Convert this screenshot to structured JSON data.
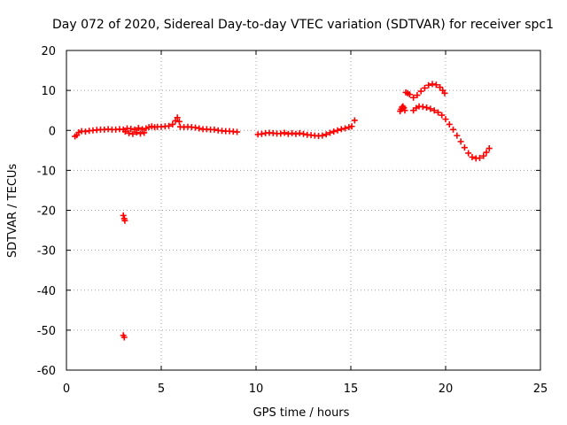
{
  "chart_data": {
    "type": "scatter",
    "title": "Day 072 of 2020, Sidereal Day-to-day VTEC variation (SDTVAR) for receiver spc1",
    "xlabel": "GPS time / hours",
    "ylabel": "SDTVAR / TECUs",
    "xlim": [
      0,
      25
    ],
    "ylim": [
      -60,
      20
    ],
    "xticks": [
      "0",
      "5",
      "10",
      "15",
      "20",
      "25"
    ],
    "yticks": [
      "20",
      "10",
      "0",
      "-10",
      "-20",
      "-30",
      "-40",
      "-50",
      "-60"
    ],
    "grid": true,
    "marker": "plus",
    "color": "#ff0000",
    "series": [
      {
        "name": "SDTVAR",
        "points": [
          [
            0.45,
            -1.5
          ],
          [
            0.55,
            -1.2
          ],
          [
            0.65,
            -0.5
          ],
          [
            0.8,
            -0.2
          ],
          [
            1.0,
            -0.3
          ],
          [
            1.2,
            -0.1
          ],
          [
            1.4,
            0.0
          ],
          [
            1.6,
            0.1
          ],
          [
            1.8,
            0.2
          ],
          [
            2.0,
            0.2
          ],
          [
            2.2,
            0.3
          ],
          [
            2.4,
            0.2
          ],
          [
            2.6,
            0.2
          ],
          [
            2.8,
            0.3
          ],
          [
            3.0,
            0.2
          ],
          [
            3.1,
            -0.3
          ],
          [
            3.2,
            0.5
          ],
          [
            3.3,
            -0.7
          ],
          [
            3.4,
            0.4
          ],
          [
            3.5,
            -0.9
          ],
          [
            3.6,
            0.2
          ],
          [
            3.7,
            -0.5
          ],
          [
            3.8,
            0.6
          ],
          [
            3.9,
            -0.8
          ],
          [
            4.0,
            0.3
          ],
          [
            4.1,
            -0.6
          ],
          [
            4.2,
            0.5
          ],
          [
            4.35,
            0.8
          ],
          [
            4.5,
            1.0
          ],
          [
            4.65,
            0.8
          ],
          [
            4.8,
            0.9
          ],
          [
            5.0,
            0.9
          ],
          [
            5.2,
            1.0
          ],
          [
            5.4,
            1.1
          ],
          [
            5.6,
            1.5
          ],
          [
            5.75,
            2.4
          ],
          [
            5.85,
            3.2
          ],
          [
            5.95,
            2.2
          ],
          [
            6.0,
            0.9
          ],
          [
            6.2,
            0.8
          ],
          [
            6.4,
            0.9
          ],
          [
            6.6,
            0.8
          ],
          [
            6.8,
            0.7
          ],
          [
            7.0,
            0.5
          ],
          [
            7.2,
            0.3
          ],
          [
            7.4,
            0.3
          ],
          [
            7.6,
            0.2
          ],
          [
            7.8,
            0.2
          ],
          [
            8.0,
            0.0
          ],
          [
            8.2,
            -0.1
          ],
          [
            8.4,
            -0.2
          ],
          [
            8.6,
            -0.2
          ],
          [
            8.8,
            -0.3
          ],
          [
            9.0,
            -0.4
          ],
          [
            10.1,
            -1.0
          ],
          [
            10.3,
            -0.9
          ],
          [
            10.5,
            -0.7
          ],
          [
            10.7,
            -0.6
          ],
          [
            10.9,
            -0.7
          ],
          [
            11.1,
            -0.8
          ],
          [
            11.3,
            -0.8
          ],
          [
            11.5,
            -0.6
          ],
          [
            11.7,
            -0.9
          ],
          [
            11.9,
            -0.7
          ],
          [
            12.1,
            -0.9
          ],
          [
            12.3,
            -0.7
          ],
          [
            12.5,
            -0.9
          ],
          [
            12.7,
            -1.1
          ],
          [
            12.9,
            -1.2
          ],
          [
            13.1,
            -1.3
          ],
          [
            13.3,
            -1.4
          ],
          [
            13.5,
            -1.3
          ],
          [
            13.7,
            -1.0
          ],
          [
            13.9,
            -0.6
          ],
          [
            14.1,
            -0.3
          ],
          [
            14.3,
            0.0
          ],
          [
            14.5,
            0.3
          ],
          [
            14.7,
            0.5
          ],
          [
            14.9,
            0.8
          ],
          [
            15.05,
            1.0
          ],
          [
            15.2,
            2.5
          ],
          [
            17.6,
            4.8
          ],
          [
            17.65,
            5.3
          ],
          [
            17.7,
            5.8
          ],
          [
            17.75,
            6.0
          ],
          [
            17.8,
            5.6
          ],
          [
            17.85,
            5.0
          ],
          [
            17.9,
            9.5
          ],
          [
            18.0,
            9.3
          ],
          [
            18.1,
            9.0
          ],
          [
            18.3,
            8.2
          ],
          [
            18.5,
            8.8
          ],
          [
            18.7,
            9.8
          ],
          [
            18.9,
            10.6
          ],
          [
            19.1,
            11.3
          ],
          [
            19.3,
            11.6
          ],
          [
            19.5,
            11.4
          ],
          [
            19.7,
            10.8
          ],
          [
            19.85,
            10.0
          ],
          [
            19.95,
            9.3
          ],
          [
            18.3,
            5.0
          ],
          [
            18.45,
            5.6
          ],
          [
            18.6,
            6.0
          ],
          [
            18.8,
            5.9
          ],
          [
            19.0,
            5.7
          ],
          [
            19.2,
            5.4
          ],
          [
            19.4,
            5.0
          ],
          [
            19.6,
            4.5
          ],
          [
            19.8,
            3.8
          ],
          [
            20.0,
            2.8
          ],
          [
            20.2,
            1.5
          ],
          [
            20.4,
            0.2
          ],
          [
            20.6,
            -1.3
          ],
          [
            20.8,
            -2.8
          ],
          [
            21.0,
            -4.3
          ],
          [
            21.2,
            -5.7
          ],
          [
            21.4,
            -6.7
          ],
          [
            21.6,
            -7.0
          ],
          [
            21.8,
            -6.9
          ],
          [
            22.0,
            -6.4
          ],
          [
            22.15,
            -5.5
          ],
          [
            22.3,
            -4.5
          ],
          [
            3.0,
            -21.3
          ],
          [
            3.05,
            -22.1
          ],
          [
            3.08,
            -22.6
          ],
          [
            3.0,
            -51.3
          ],
          [
            3.05,
            -51.8
          ]
        ]
      }
    ]
  }
}
